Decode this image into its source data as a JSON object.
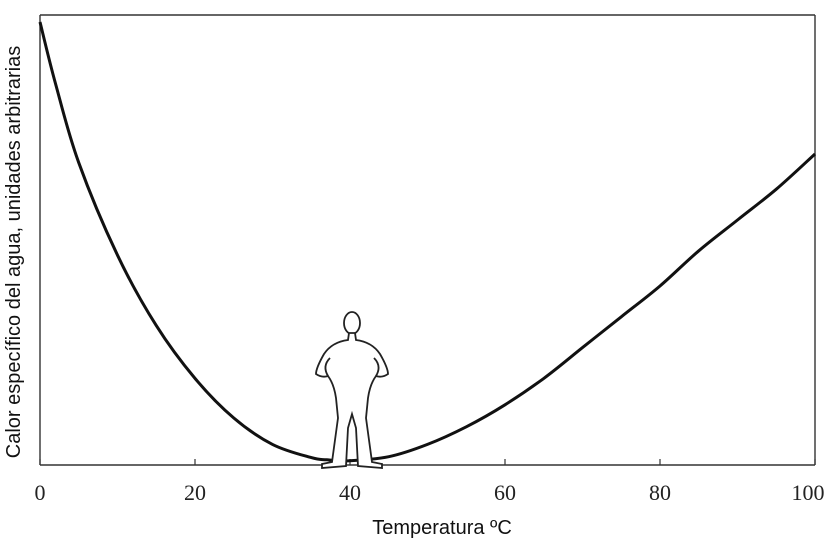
{
  "chart_data": {
    "type": "line",
    "title": "",
    "xlabel": "Temperatura ºC",
    "ylabel": "Calor específico del agua, unidades arbitrarias",
    "xlim": [
      0,
      100
    ],
    "ylim": [
      0,
      1
    ],
    "x_ticks": [
      "0",
      "20",
      "40",
      "60",
      "80",
      "100"
    ],
    "x_tick_values": [
      0,
      20,
      40,
      60,
      80,
      100
    ],
    "grid": false,
    "y_tick_labels_shown": false,
    "series": [
      {
        "x": [
          0,
          2,
          5,
          10,
          15,
          20,
          25,
          30,
          35,
          37,
          40,
          45,
          50,
          55,
          60,
          65,
          70,
          75,
          80,
          85,
          90,
          95,
          100
        ],
        "values": [
          1.0,
          0.86,
          0.68,
          0.47,
          0.31,
          0.19,
          0.1,
          0.04,
          0.01,
          0.005,
          0.003,
          0.012,
          0.04,
          0.08,
          0.13,
          0.19,
          0.26,
          0.33,
          0.4,
          0.48,
          0.55,
          0.62,
          0.7
        ]
      }
    ],
    "annotation_icon": "standing-human-figure-icon",
    "curve_color": "#111111"
  }
}
